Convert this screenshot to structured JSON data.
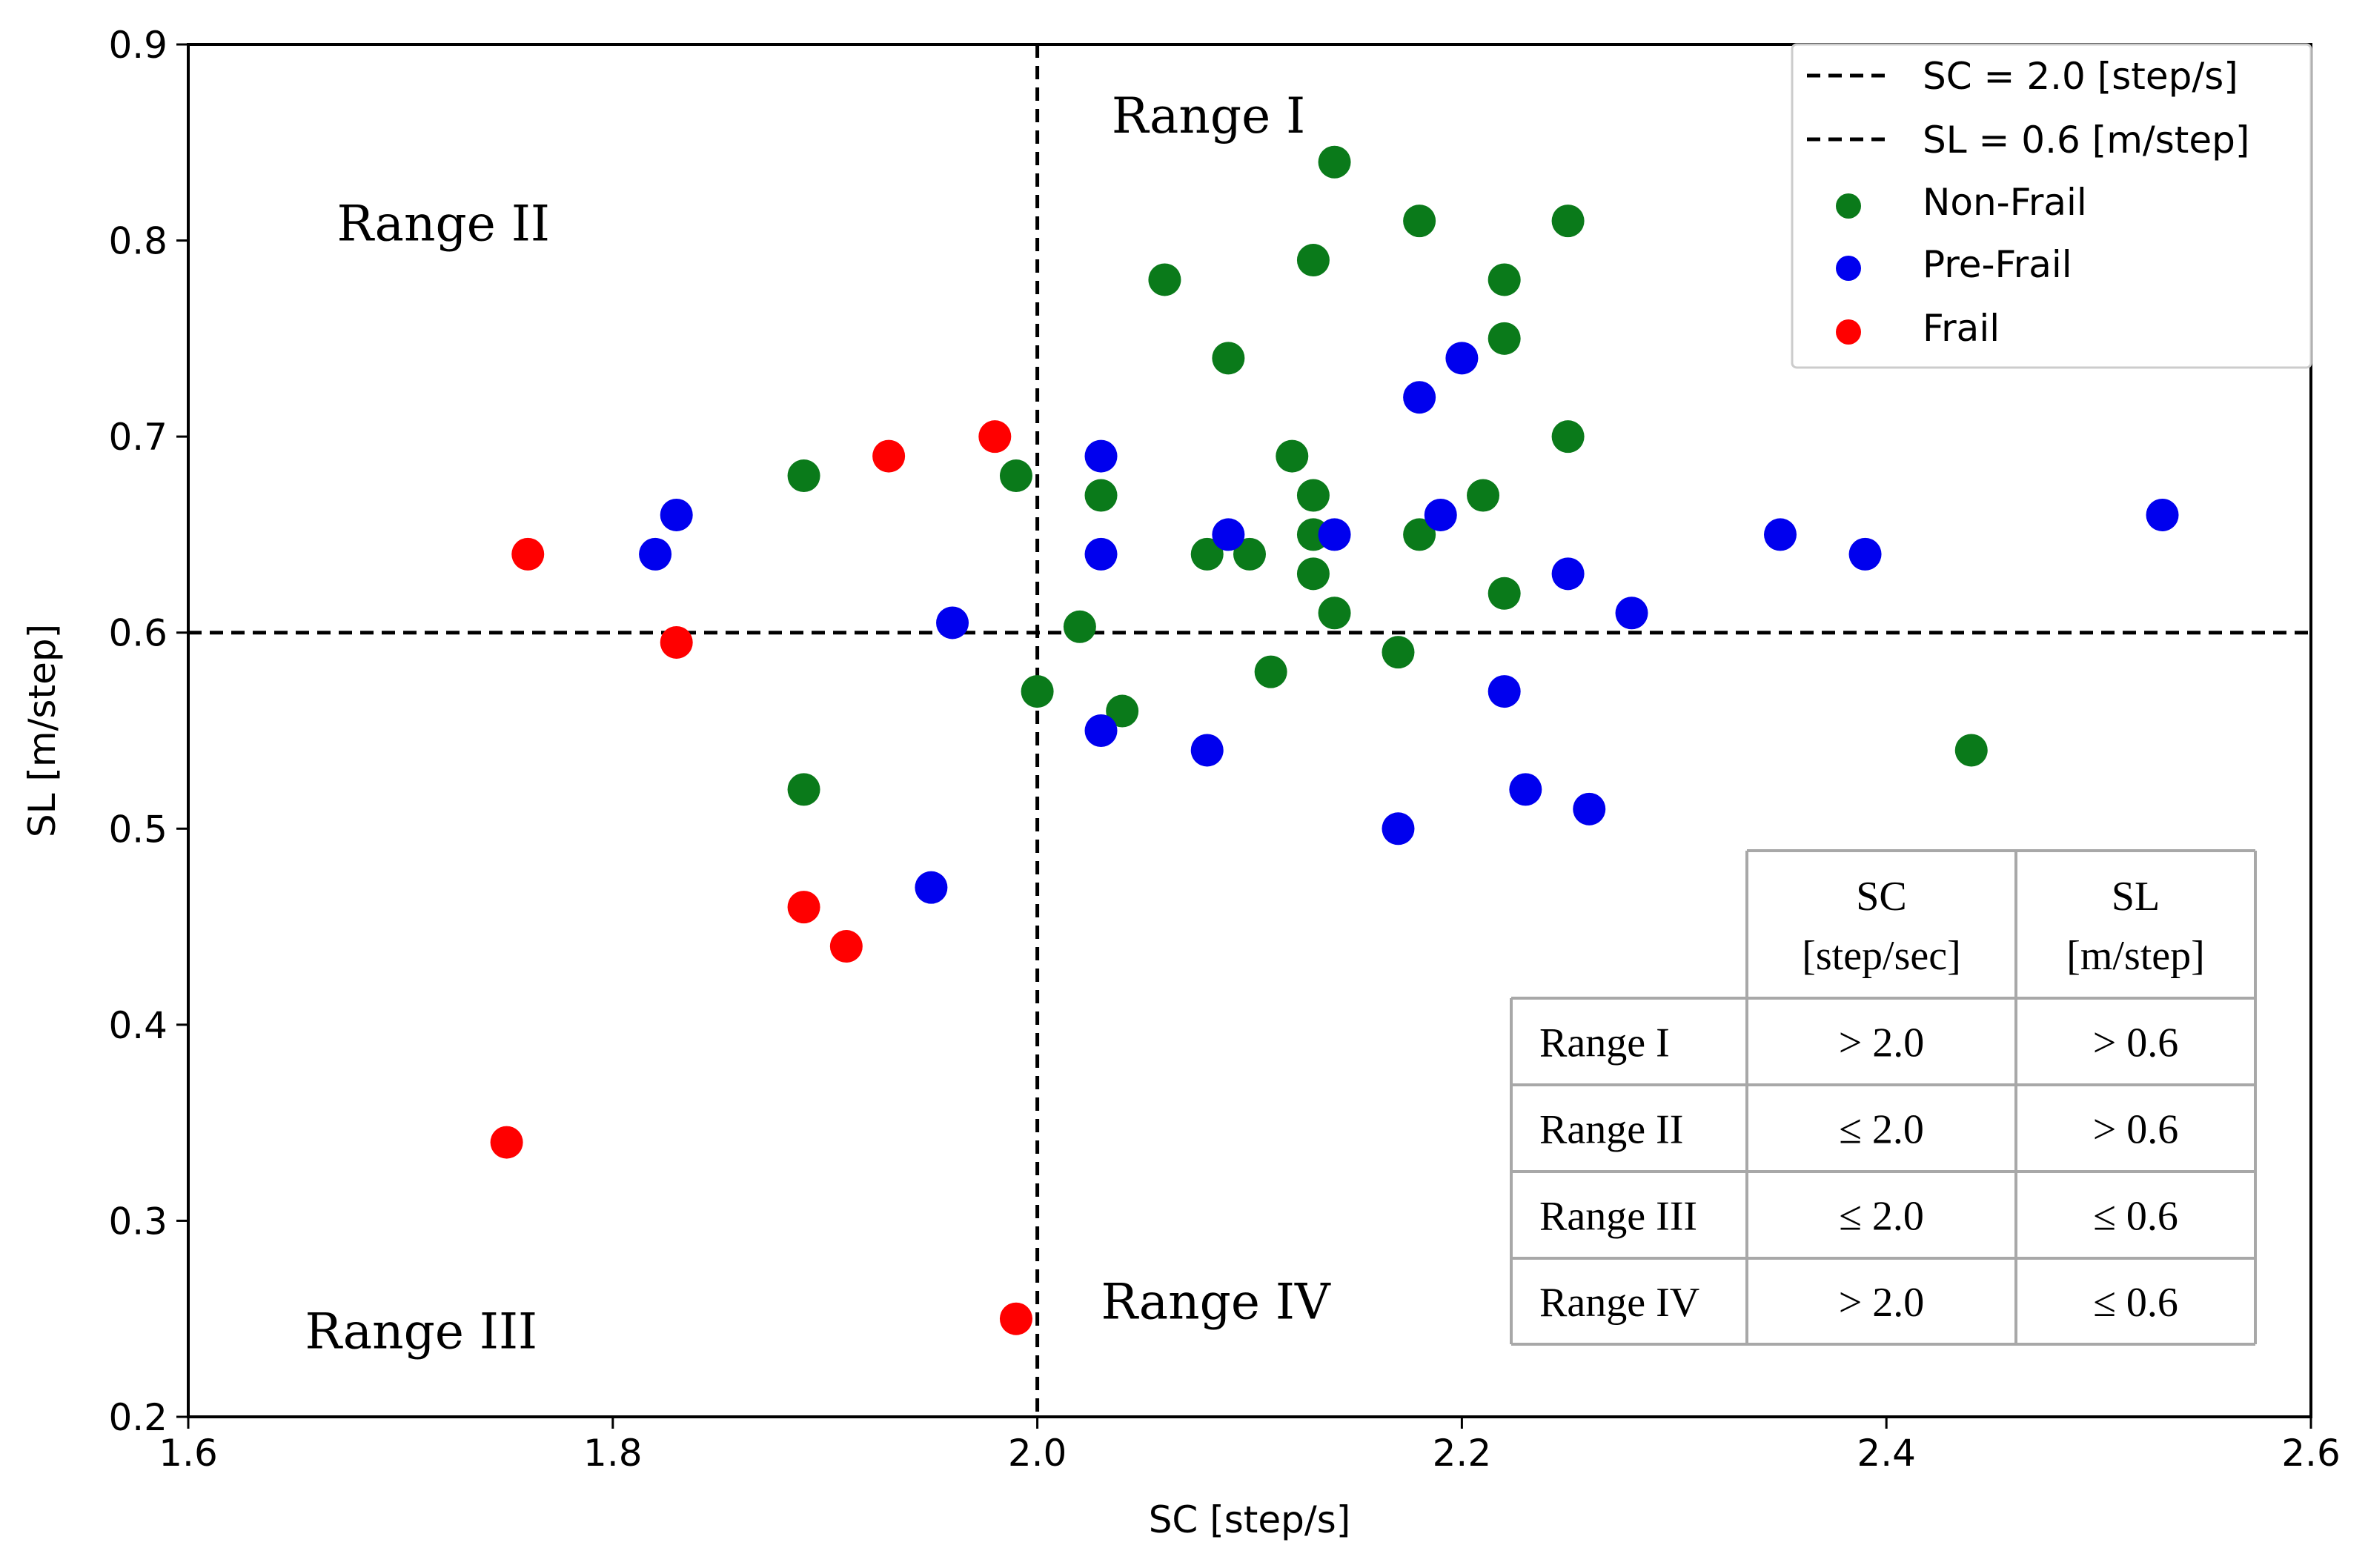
{
  "chart_data": {
    "type": "scatter",
    "xlabel": "SC [step/s]",
    "ylabel": "SL [m/step]",
    "xlim": [
      1.6,
      2.6
    ],
    "ylim": [
      0.2,
      0.9
    ],
    "x_ticks": [
      "1.6",
      "1.8",
      "2.0",
      "2.2",
      "2.4",
      "2.6"
    ],
    "y_ticks": [
      "0.2",
      "0.3",
      "0.4",
      "0.5",
      "0.6",
      "0.7",
      "0.8",
      "0.9"
    ],
    "grid": false,
    "legend_position": "top-right",
    "reference_lines": [
      {
        "orientation": "vertical",
        "value": 2.0,
        "style": "dashed",
        "color": "#000000",
        "label": "SC = 2.0 [step/s]"
      },
      {
        "orientation": "horizontal",
        "value": 0.6,
        "style": "dashed",
        "color": "#000000",
        "label": "SL = 0.6 [m/step]"
      }
    ],
    "series": [
      {
        "name": "Non-Frail",
        "color": "#0a7a1a",
        "points": [
          [
            2.14,
            0.84
          ],
          [
            2.18,
            0.81
          ],
          [
            2.25,
            0.81
          ],
          [
            2.06,
            0.78
          ],
          [
            2.13,
            0.79
          ],
          [
            2.22,
            0.78
          ],
          [
            2.09,
            0.74
          ],
          [
            2.22,
            0.75
          ],
          [
            2.25,
            0.7
          ],
          [
            1.89,
            0.68
          ],
          [
            1.99,
            0.68
          ],
          [
            2.03,
            0.67
          ],
          [
            2.12,
            0.69
          ],
          [
            2.13,
            0.67
          ],
          [
            2.21,
            0.67
          ],
          [
            2.13,
            0.65
          ],
          [
            2.18,
            0.65
          ],
          [
            2.08,
            0.64
          ],
          [
            2.1,
            0.64
          ],
          [
            2.13,
            0.63
          ],
          [
            2.22,
            0.62
          ],
          [
            2.14,
            0.61
          ],
          [
            2.02,
            0.603
          ],
          [
            2.17,
            0.59
          ],
          [
            2.11,
            0.58
          ],
          [
            2.0,
            0.57
          ],
          [
            2.04,
            0.56
          ],
          [
            1.89,
            0.52
          ],
          [
            2.44,
            0.54
          ]
        ]
      },
      {
        "name": "Pre-Frail",
        "color": "#0000ee",
        "points": [
          [
            2.2,
            0.74
          ],
          [
            2.18,
            0.72
          ],
          [
            2.03,
            0.69
          ],
          [
            1.83,
            0.66
          ],
          [
            1.82,
            0.64
          ],
          [
            2.03,
            0.64
          ],
          [
            2.09,
            0.65
          ],
          [
            2.14,
            0.65
          ],
          [
            2.19,
            0.66
          ],
          [
            2.25,
            0.63
          ],
          [
            2.35,
            0.65
          ],
          [
            2.39,
            0.64
          ],
          [
            2.53,
            0.66
          ],
          [
            1.96,
            0.605
          ],
          [
            2.28,
            0.61
          ],
          [
            2.22,
            0.57
          ],
          [
            2.03,
            0.55
          ],
          [
            2.08,
            0.54
          ],
          [
            2.23,
            0.52
          ],
          [
            2.26,
            0.51
          ],
          [
            2.17,
            0.5
          ],
          [
            1.95,
            0.47
          ]
        ]
      },
      {
        "name": "Frail",
        "color": "#ff0000",
        "points": [
          [
            1.98,
            0.7
          ],
          [
            1.93,
            0.69
          ],
          [
            1.76,
            0.64
          ],
          [
            1.83,
            0.595
          ],
          [
            1.89,
            0.46
          ],
          [
            1.91,
            0.44
          ],
          [
            1.75,
            0.34
          ],
          [
            1.99,
            0.25
          ]
        ]
      }
    ],
    "annotations": [
      {
        "text": "Range I",
        "x": 2.035,
        "y": 0.855
      },
      {
        "text": "Range II",
        "x": 1.67,
        "y": 0.8
      },
      {
        "text": "Range III",
        "x": 1.655,
        "y": 0.235
      },
      {
        "text": "Range IV",
        "x": 2.03,
        "y": 0.25
      }
    ],
    "table": {
      "headers": [
        "",
        "SC\n[step/sec]",
        "SL\n[m/step]"
      ],
      "rows": [
        [
          "Range I",
          "> 2.0",
          "> 0.6"
        ],
        [
          "Range II",
          "≤ 2.0",
          "> 0.6"
        ],
        [
          "Range III",
          "≤ 2.0",
          "≤ 0.6"
        ],
        [
          "Range IV",
          "> 2.0",
          "≤ 0.6"
        ]
      ]
    }
  }
}
